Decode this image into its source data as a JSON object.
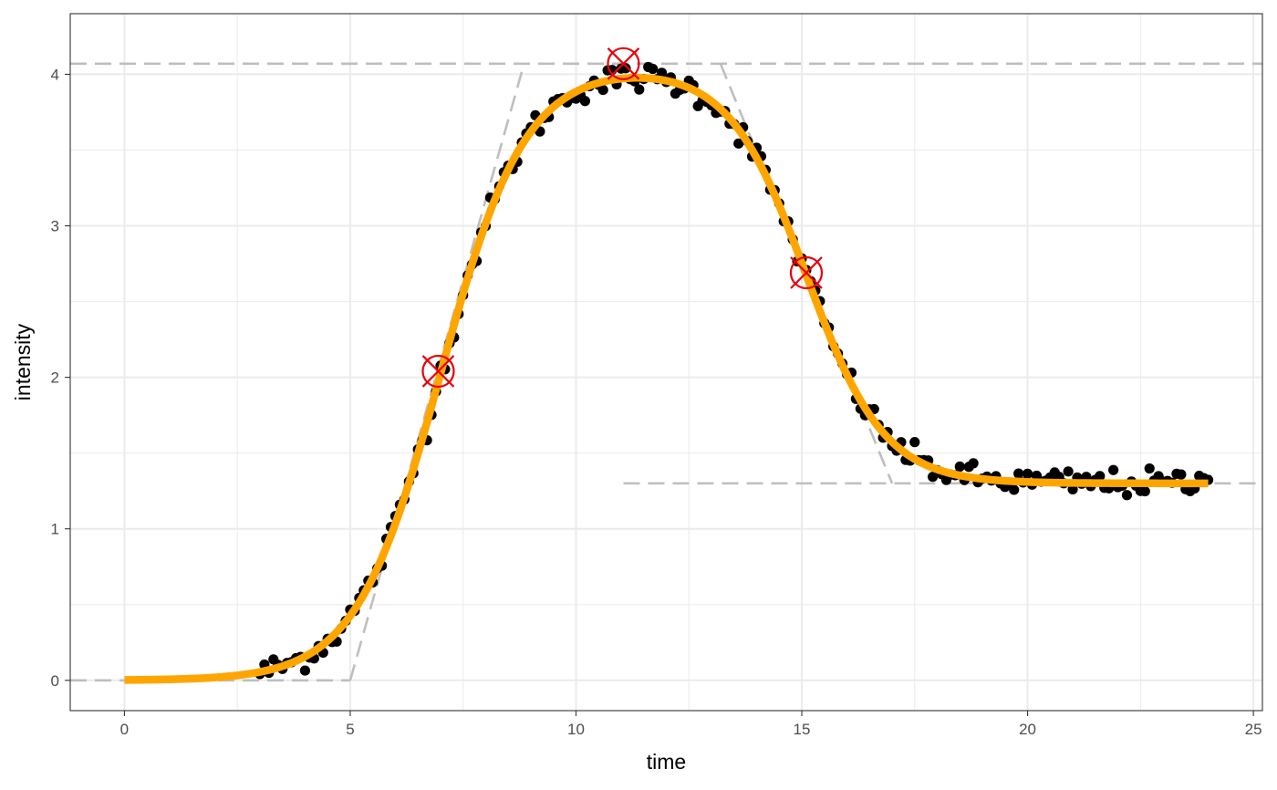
{
  "chart_data": {
    "type": "scatter",
    "xlabel": "time",
    "ylabel": "intensity",
    "xlim": [
      -1.2,
      25.2
    ],
    "ylim": [
      -0.2,
      4.4
    ],
    "x_ticks": [
      0,
      5,
      10,
      15,
      20,
      25
    ],
    "y_ticks": [
      0,
      1,
      2,
      3,
      4
    ],
    "x_tick_labels": [
      "0",
      "5",
      "10",
      "15",
      "20",
      "25"
    ],
    "y_tick_labels": [
      "0",
      "1",
      "2",
      "3",
      "4"
    ],
    "grid": true,
    "legend": "none",
    "colors": {
      "points": "#000000",
      "fit_line": "#FFA500",
      "markers": "#E8000B",
      "reference_lines": "#BEBEBE",
      "grid": "#EBEBEB",
      "panel_border": "#333333"
    },
    "observed_points": {
      "x_range": [
        3.0,
        24.0
      ],
      "x_step": 0.1,
      "noise_sd": 0.045,
      "model": "fitted_curve"
    },
    "fitted_curve": {
      "style": "solid",
      "x_range": [
        0,
        24
      ],
      "rise": {
        "midpoint": 7.0,
        "slope": 1.07,
        "max": 4.05
      },
      "fall": {
        "midpoint": 15.1,
        "slope": 1.16,
        "drop": 2.75
      },
      "final": 1.3
    },
    "key_points": [
      {
        "x": 6.95,
        "y": 2.04
      },
      {
        "x": 11.05,
        "y": 4.07
      },
      {
        "x": 15.1,
        "y": 2.69
      }
    ],
    "reference_lines": [
      {
        "style": "dashed",
        "x": [
          -1.2,
          5.0
        ],
        "y": [
          0.0,
          0.0
        ]
      },
      {
        "style": "dashed",
        "x": [
          5.0,
          8.85
        ],
        "y": [
          0.0,
          4.07
        ]
      },
      {
        "style": "dashed",
        "x": [
          -1.2,
          25.2
        ],
        "y": [
          4.07,
          4.07
        ]
      },
      {
        "style": "dashed",
        "x": [
          13.2,
          17.0
        ],
        "y": [
          4.07,
          1.3
        ]
      },
      {
        "style": "dashed",
        "x": [
          11.05,
          25.2
        ],
        "y": [
          1.3,
          1.3
        ]
      }
    ]
  }
}
